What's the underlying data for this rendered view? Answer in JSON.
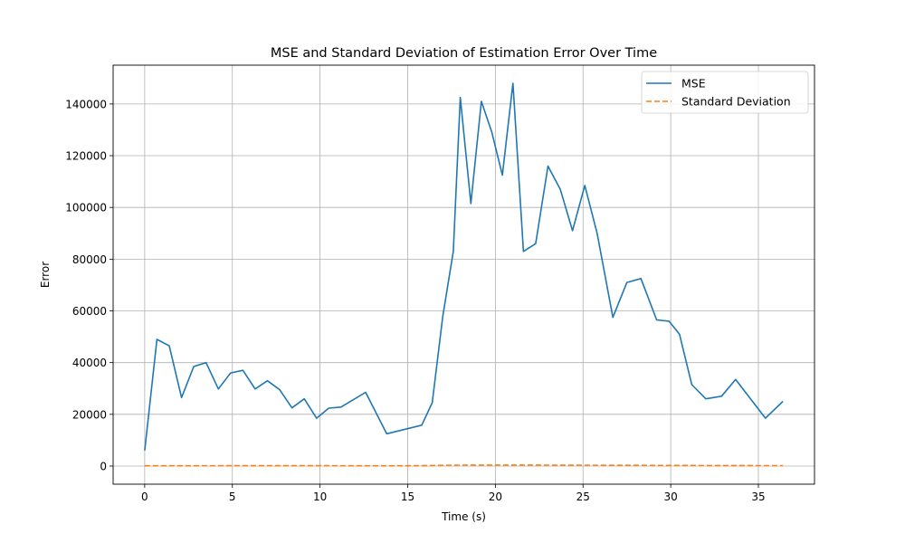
{
  "chart_data": {
    "type": "line",
    "title": "MSE and Standard Deviation of Estimation Error Over Time",
    "xlabel": "Time (s)",
    "ylabel": "Error",
    "xlim": [
      -1.8,
      38.2
    ],
    "ylim": [
      -7000,
      155000
    ],
    "xticks": [
      0,
      5,
      10,
      15,
      20,
      25,
      30,
      35
    ],
    "yticks": [
      0,
      20000,
      40000,
      60000,
      80000,
      100000,
      120000,
      140000
    ],
    "grid": true,
    "legend_position": "top-right",
    "series": [
      {
        "name": "MSE",
        "color": "#1f77b4",
        "style": "solid",
        "x": [
          0.0,
          0.7,
          1.4,
          2.1,
          2.8,
          3.5,
          4.2,
          4.9,
          5.6,
          6.3,
          7.0,
          7.7,
          8.4,
          9.1,
          9.8,
          10.5,
          11.2,
          12.6,
          13.8,
          15.8,
          16.4,
          17.0,
          17.6,
          18.0,
          18.6,
          19.2,
          19.8,
          20.4,
          21.0,
          21.6,
          22.3,
          23.0,
          23.7,
          24.4,
          25.1,
          25.8,
          26.7,
          27.5,
          28.3,
          29.2,
          29.9,
          30.5,
          31.2,
          32.0,
          32.9,
          33.7,
          35.4,
          36.4
        ],
        "y": [
          6000,
          49000,
          46500,
          26500,
          38500,
          40000,
          29800,
          36000,
          37000,
          29800,
          33000,
          29500,
          22500,
          26000,
          18500,
          22400,
          22800,
          28500,
          12500,
          15800,
          24500,
          58000,
          83000,
          142500,
          101500,
          141000,
          129000,
          112500,
          148000,
          83000,
          86000,
          116000,
          107000,
          91000,
          108500,
          90000,
          57500,
          71000,
          72500,
          56500,
          56000,
          51000,
          31500,
          26000,
          27000,
          33500,
          18500,
          25000
        ]
      },
      {
        "name": "Standard Deviation",
        "color": "#ff7f0e",
        "style": "dashed",
        "x": [
          0.0,
          5.0,
          10.0,
          15.0,
          18.0,
          21.0,
          25.0,
          30.0,
          35.0,
          36.4
        ],
        "y": [
          100,
          150,
          130,
          120,
          350,
          380,
          330,
          240,
          160,
          170
        ]
      }
    ]
  }
}
